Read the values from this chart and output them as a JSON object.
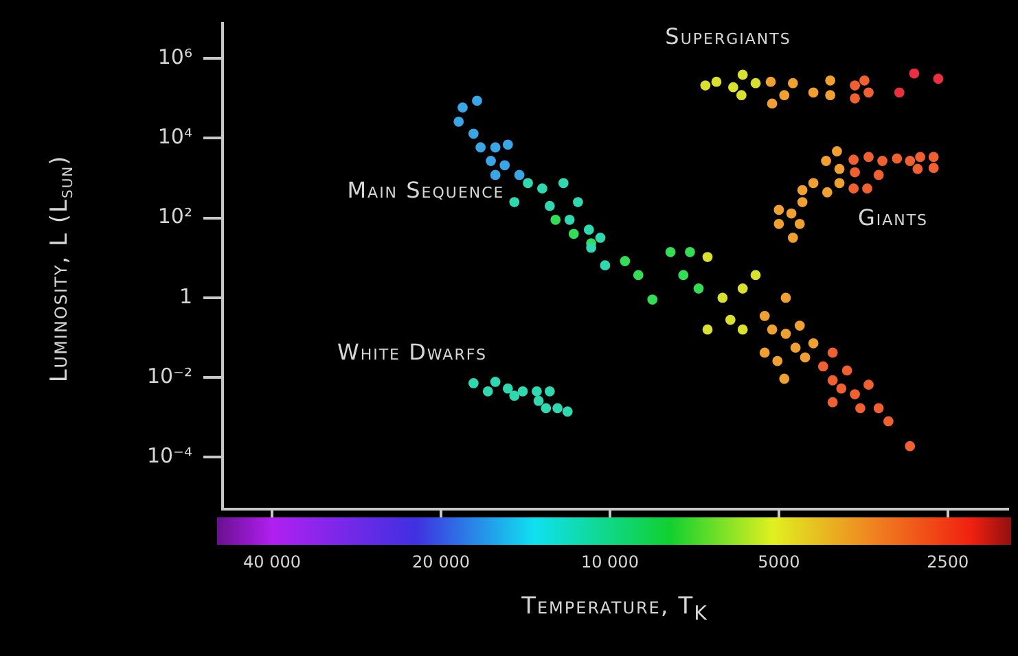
{
  "chart_data": {
    "type": "scatter",
    "xlabel": "Temperature, T$_{K}$",
    "ylabel": "Luminosity, L (L$_{sun}$)",
    "log": "xy",
    "marker": "circle",
    "xlim": [
      49000,
      1950
    ],
    "xticks": [
      {
        "value": 40000,
        "label": "40 000"
      },
      {
        "value": 20000,
        "label": "20 000"
      },
      {
        "value": 10000,
        "label": "10 000"
      },
      5000,
      2500
    ],
    "ylim": [
      5e-06,
      7600000
    ],
    "yticks": [
      {
        "value": 0.0001,
        "label": "10⁻⁴"
      },
      {
        "value": 0.01,
        "label": "10⁻²"
      },
      1,
      {
        "value": 100,
        "label": "10²"
      },
      {
        "value": 10000,
        "label": "10⁴"
      },
      {
        "value": 1000000,
        "label": "10⁶"
      }
    ],
    "annotations": [
      "Supergiants",
      "Giants",
      "Main Sequence",
      "White Dwarfs"
    ],
    "series": [
      {
        "color": "#3aa6e6",
        "x": [
          17250,
          18300,
          18600,
          17500,
          17000,
          16000,
          15200,
          16300,
          15400,
          16000,
          14500
        ],
        "values": [
          87000,
          59000,
          26000,
          13000,
          5900,
          5900,
          6900,
          2700,
          2100,
          1200,
          1200
        ]
      },
      {
        "color": "#30d8b0",
        "x": [
          14800,
          14000,
          13200,
          12100,
          11400,
          12800,
          11800,
          10900,
          10400,
          10800,
          10200,
          17500,
          16500,
          16000,
          15200,
          14800,
          14300,
          13500,
          13400,
          12800,
          13000,
          12400,
          11900
        ],
        "values": [
          250,
          750,
          550,
          750,
          250,
          200,
          90,
          51,
          32,
          18,
          6.5,
          0.0072,
          0.0045,
          0.0078,
          0.0053,
          0.0035,
          0.0045,
          0.0045,
          0.0026,
          0.0045,
          0.0017,
          0.0017,
          0.0014
        ]
      },
      {
        "color": "#33dd55",
        "x": [
          12500,
          11600,
          10800,
          9400,
          8900,
          8400,
          7800,
          7200,
          7400,
          6950
        ],
        "values": [
          90,
          40,
          23,
          8.3,
          3.7,
          0.9,
          14,
          14,
          3.7,
          1.7
        ]
      },
      {
        "color": "#d9e030",
        "x": [
          6700,
          6700,
          6300,
          6100,
          5800,
          5500,
          5800,
          6760,
          6460,
          6030,
          5800,
          5830,
          5500
        ],
        "values": [
          10.5,
          0.16,
          1,
          0.28,
          1.7,
          3.7,
          0.16,
          210000,
          260000,
          190000,
          390000,
          120000,
          240000
        ]
      },
      {
        "color": "#f0a030",
        "x": [
          5300,
          5140,
          5300,
          4860,
          5030,
          4860,
          4590,
          4890,
          4670,
          4490,
          4340,
          5170,
          5140,
          4890,
          4720,
          4340,
          4050,
          4050,
          3940,
          4120,
          3900,
          4340,
          3900,
          4540,
          4100,
          4540,
          5000,
          4750,
          5000,
          4590,
          4720
        ],
        "values": [
          0.35,
          0.16,
          0.042,
          1,
          0.026,
          0.125,
          0.2,
          0.0093,
          0.056,
          0.032,
          0.072,
          260000,
          74000,
          120000,
          240000,
          140000,
          280000,
          120000,
          4700,
          2700,
          1700,
          750,
          750,
          500,
          440,
          250,
          160,
          130,
          71,
          71,
          32
        ]
      },
      {
        "color": "#f06030",
        "x": [
          4170,
          4010,
          4010,
          3780,
          3870,
          3660,
          3460,
          4010,
          3580,
          3320,
          3190,
          2920,
          3660,
          3660,
          3520,
          3460,
          3680,
          3460,
          3270,
          3080,
          2920,
          2800,
          2650,
          2650,
          2830,
          3660,
          3320,
          3680,
          3480
        ],
        "values": [
          0.019,
          0.042,
          0.0085,
          0.015,
          0.0053,
          0.0038,
          0.0066,
          0.0024,
          0.0017,
          0.0017,
          0.0008,
          0.00019,
          210000,
          100000,
          280000,
          140000,
          2900,
          3400,
          2700,
          3100,
          2700,
          3400,
          3400,
          1800,
          1700,
          1400,
          1200,
          550,
          550
        ]
      },
      {
        "color": "#e83040",
        "x": [
          3050,
          2870,
          2600
        ],
        "values": [
          140000,
          420000,
          310000
        ]
      }
    ]
  }
}
